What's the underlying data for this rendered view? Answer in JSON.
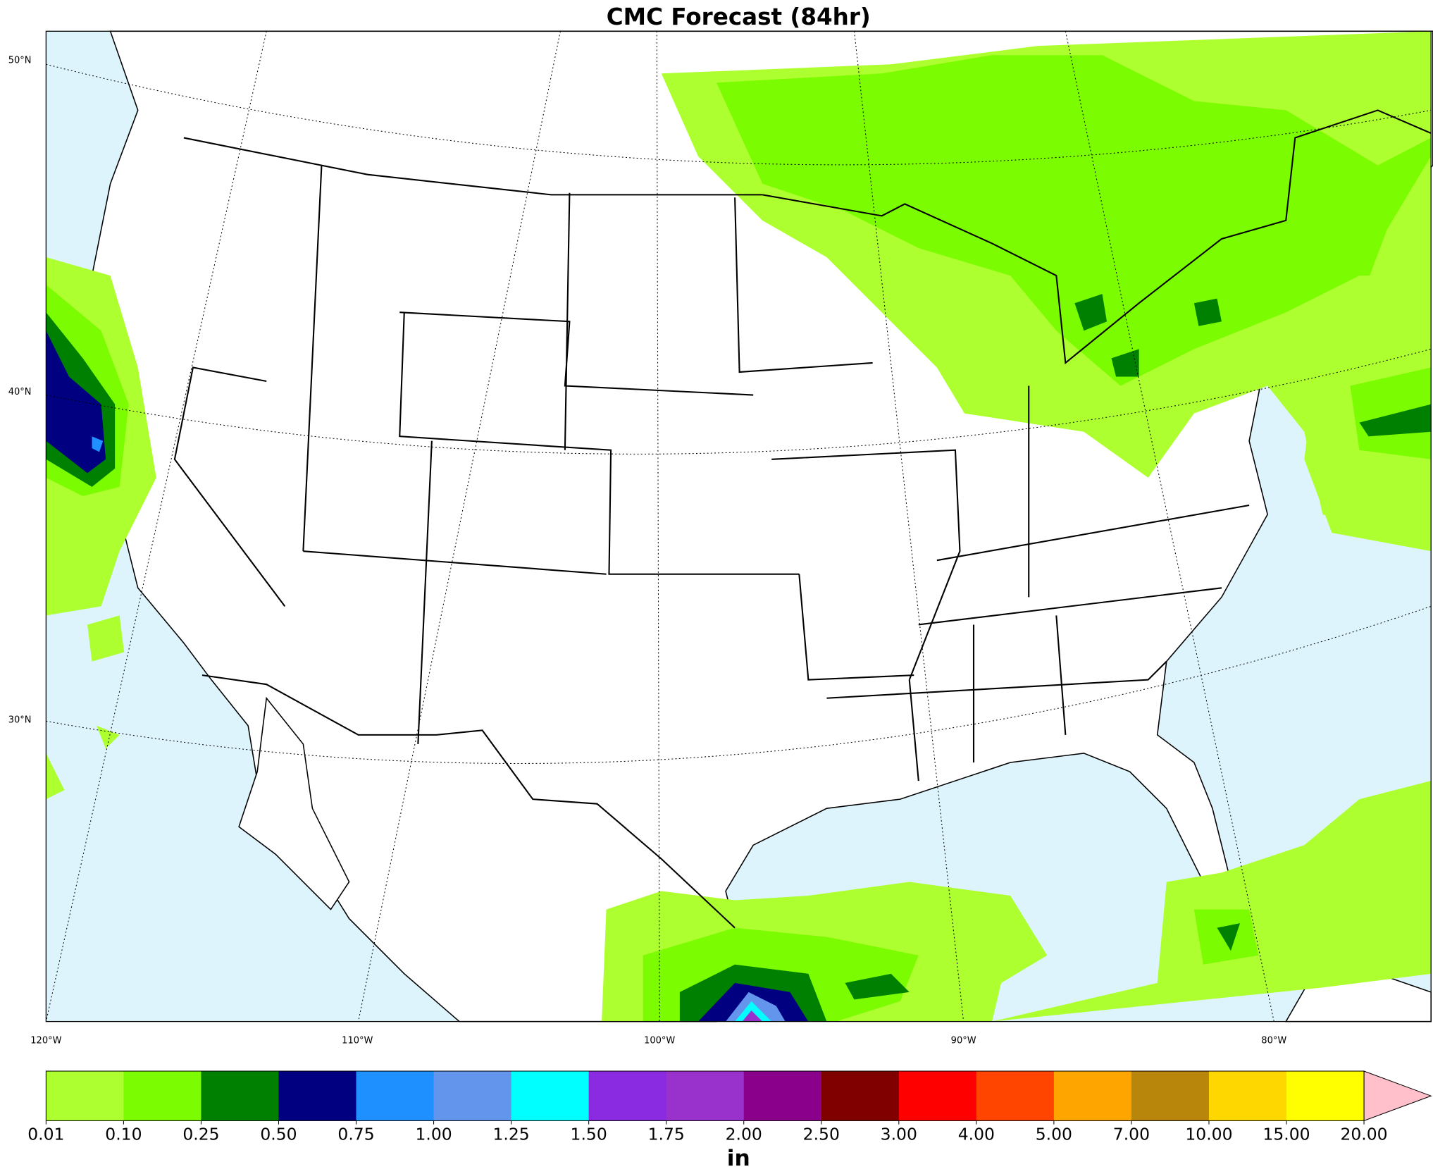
{
  "title": "CMC Forecast (84hr)",
  "map": {
    "lat_labels": [
      "50°N",
      "40°N",
      "30°N"
    ],
    "lon_labels": [
      "120°W",
      "110°W",
      "100°W",
      "90°W",
      "80°W"
    ]
  },
  "colorbar": {
    "levels": [
      {
        "value": 0.01,
        "label": "0.01"
      },
      {
        "value": 0.1,
        "label": "0.10"
      },
      {
        "value": 0.25,
        "label": "0.25"
      },
      {
        "value": 0.5,
        "label": "0.50"
      },
      {
        "value": 0.75,
        "label": "0.75"
      },
      {
        "value": 1,
        "label": "1.00"
      },
      {
        "value": 1.25,
        "label": "1.25"
      },
      {
        "value": 1.5,
        "label": "1.50"
      },
      {
        "value": 1.75,
        "label": "1.75"
      },
      {
        "value": 2,
        "label": "2.00"
      },
      {
        "value": 2.5,
        "label": "2.50"
      },
      {
        "value": 3,
        "label": "3.00"
      },
      {
        "value": 4,
        "label": "4.00"
      },
      {
        "value": 5,
        "label": "5.00"
      },
      {
        "value": 7,
        "label": "7.00"
      },
      {
        "value": 10,
        "label": "10.00"
      },
      {
        "value": 15,
        "label": "15.00"
      },
      {
        "value": 20,
        "label": "20.00"
      }
    ],
    "colors": [
      "#adff2f",
      "#7cfc00",
      "#008000",
      "#000080",
      "#1e90ff",
      "#6495ed",
      "#00ffff",
      "#8a2be2",
      "#9932cc",
      "#8b008b",
      "#800000",
      "#ff0000",
      "#ff4500",
      "#ffa500",
      "#b8860b",
      "#ffd700",
      "#ffff00"
    ],
    "extend_color": "#ffc0cb",
    "label": "in"
  }
}
